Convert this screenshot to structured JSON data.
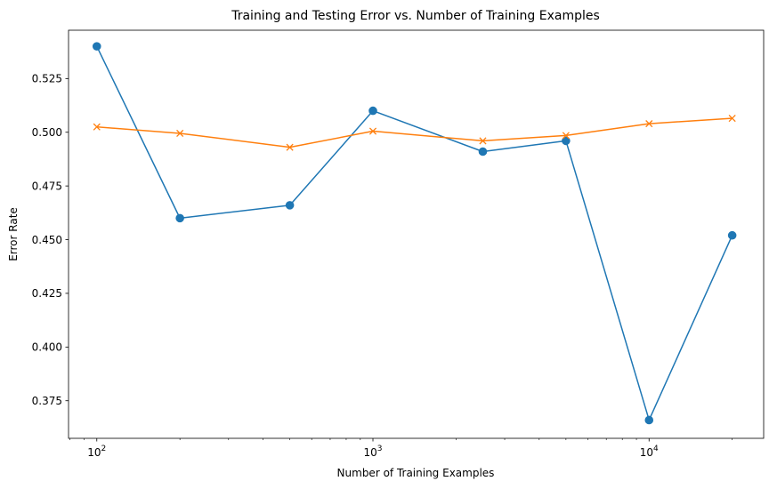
{
  "chart_data": {
    "type": "line",
    "title": "Training and Testing Error vs. Number of Training Examples",
    "xlabel": "Number of Training Examples",
    "ylabel": "Error Rate",
    "xscale": "log",
    "xlim": [
      79,
      26000
    ],
    "ylim": [
      0.3575,
      0.5475
    ],
    "grid": false,
    "legend": "none",
    "x": [
      100,
      200,
      500,
      1000,
      2500,
      5000,
      10000,
      20000
    ],
    "x_ticks": [
      {
        "value": 100,
        "base": "10",
        "exp": "2"
      },
      {
        "value": 1000,
        "base": "10",
        "exp": "3"
      },
      {
        "value": 10000,
        "base": "10",
        "exp": "4"
      }
    ],
    "y_ticks": [
      {
        "value": 0.375,
        "label": "0.375"
      },
      {
        "value": 0.4,
        "label": "0.400"
      },
      {
        "value": 0.425,
        "label": "0.425"
      },
      {
        "value": 0.45,
        "label": "0.450"
      },
      {
        "value": 0.475,
        "label": "0.475"
      },
      {
        "value": 0.5,
        "label": "0.500"
      },
      {
        "value": 0.525,
        "label": "0.525"
      }
    ],
    "series": [
      {
        "color": "#1f77b4",
        "marker": "circle",
        "values": [
          0.54,
          0.46,
          0.466,
          0.51,
          0.491,
          0.496,
          0.366,
          0.452
        ]
      },
      {
        "color": "#ff7f0e",
        "marker": "x",
        "values": [
          0.5025,
          0.4995,
          0.493,
          0.5005,
          0.496,
          0.4985,
          0.504,
          0.5065
        ]
      }
    ]
  }
}
